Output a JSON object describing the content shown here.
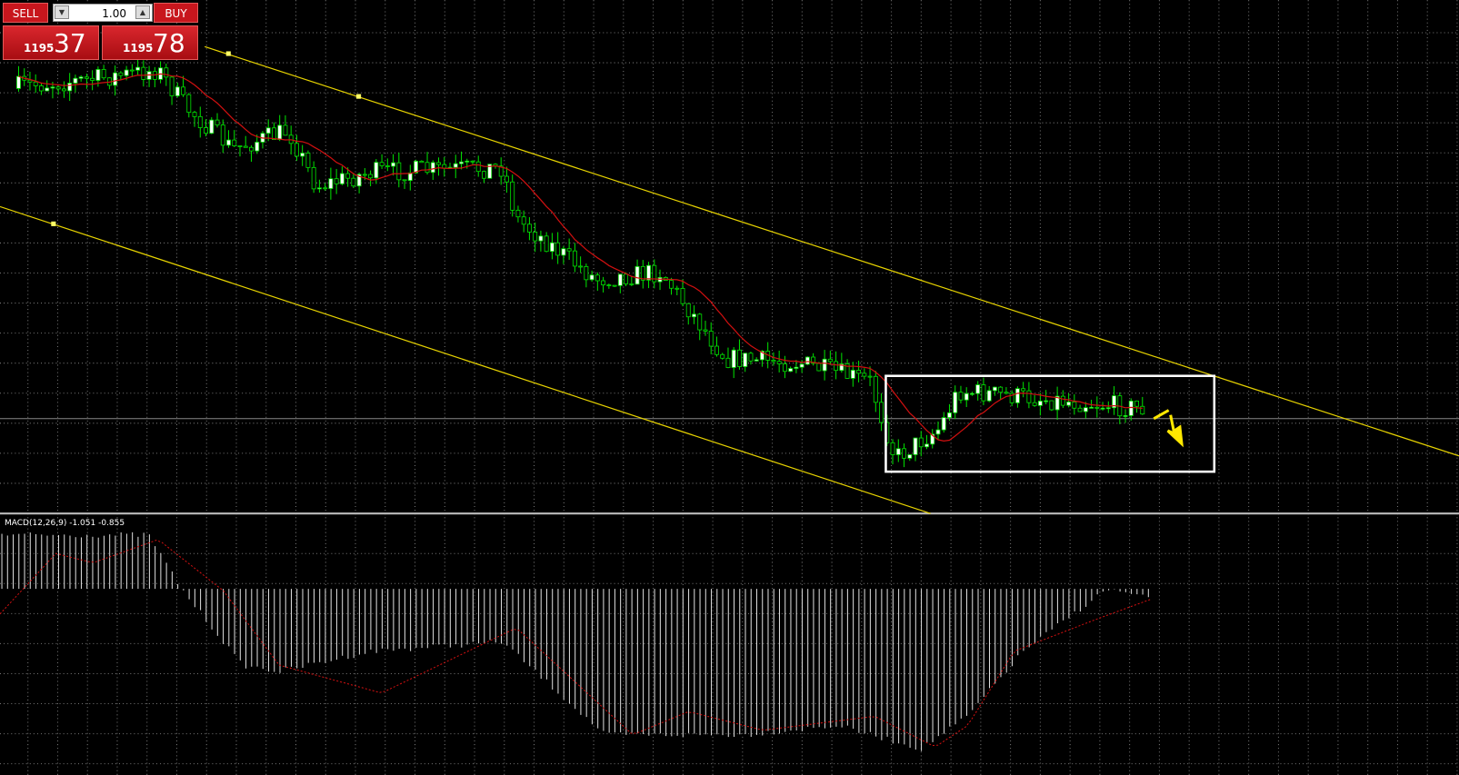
{
  "trade_panel": {
    "sell": "SELL",
    "lot": "1.00",
    "buy": "BUY",
    "sell_price": {
      "figure": "1195",
      "pips": "37"
    },
    "buy_price": {
      "figure": "1195",
      "pips": "78"
    }
  },
  "indicator": {
    "label": "MACD(12,26,9) -1.051 -0.855"
  }
}
